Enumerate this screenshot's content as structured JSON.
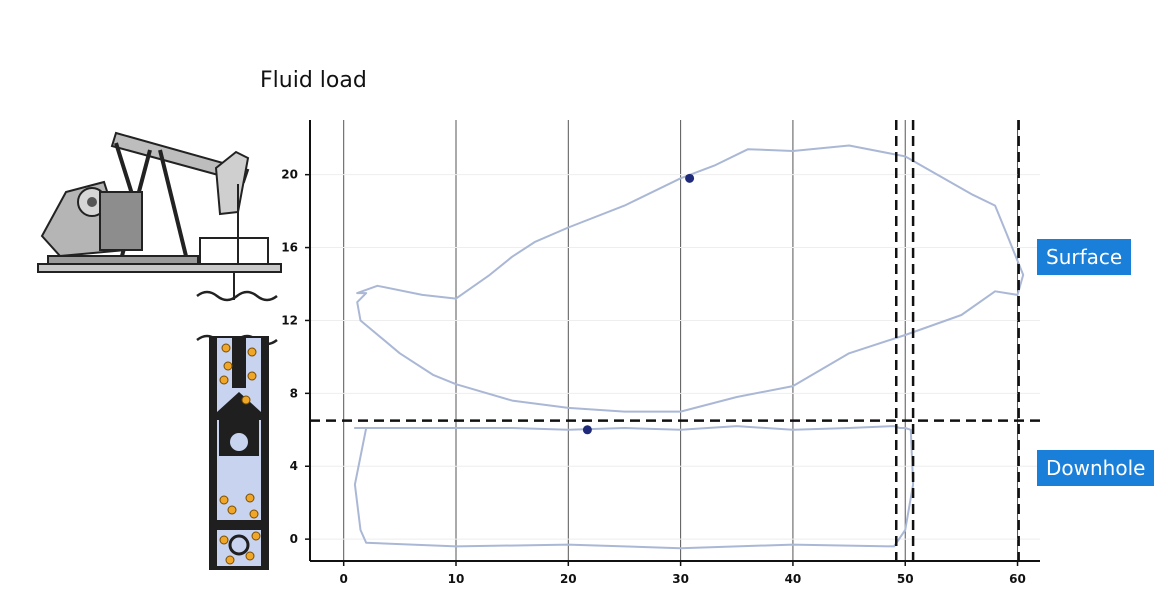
{
  "chart_data": {
    "type": "line",
    "title": "Fluid load",
    "xlabel": "",
    "ylabel": "",
    "xlim": [
      -3,
      62
    ],
    "ylim": [
      -1.2,
      23
    ],
    "xticks": [
      0,
      10,
      20,
      30,
      40,
      50,
      60
    ],
    "yticks": [
      0,
      4,
      8,
      12,
      16,
      20
    ],
    "grid": "vertical",
    "series": [
      {
        "name": "Surface",
        "color": "#aab8d6",
        "x": [
          2,
          1.2,
          1.5,
          5,
          8,
          10,
          15,
          20,
          25,
          30,
          35,
          40,
          45,
          50,
          55,
          58,
          60,
          60.5,
          59,
          58,
          56,
          50,
          45,
          40,
          36,
          33,
          30,
          25,
          20,
          17,
          15,
          13,
          10,
          7,
          3,
          1.2
        ],
        "y": [
          13.5,
          13,
          12,
          10.2,
          9,
          8.5,
          7.6,
          7.2,
          7.0,
          7.0,
          7.8,
          8.4,
          10.2,
          11.2,
          12.3,
          13.6,
          13.4,
          14.5,
          16.8,
          18.3,
          18.9,
          21,
          21.6,
          21.3,
          21.4,
          20.5,
          19.8,
          18.3,
          17.1,
          16.3,
          15.5,
          14.5,
          13.2,
          13.4,
          13.9,
          13.5
        ]
      },
      {
        "name": "Downhole",
        "color": "#aab8d6",
        "x": [
          2,
          1,
          1.5,
          2,
          10,
          20,
          30,
          40,
          49,
          50,
          50.7,
          50.5,
          50,
          49.5,
          49,
          45,
          40,
          35,
          30,
          25,
          20,
          15,
          10,
          5,
          1
        ],
        "y": [
          6.1,
          3,
          0.5,
          -0.2,
          -0.4,
          -0.3,
          -0.5,
          -0.3,
          -0.4,
          0.5,
          3,
          6.0,
          6.1,
          6.1,
          6.2,
          6.1,
          6.0,
          6.2,
          6.0,
          6.1,
          6.0,
          6.1,
          6.1,
          6.1,
          6.1
        ]
      }
    ],
    "markers": [
      {
        "x": 30.8,
        "y": 19.8,
        "color": "#1f2a7a"
      },
      {
        "x": 21.7,
        "y": 6.0,
        "color": "#1f2a7a"
      }
    ],
    "reference_lines": {
      "horizontal_dashed": [
        6.5
      ],
      "vertical_dashed": [
        49.2,
        50.7,
        60.1
      ]
    },
    "annotations": [
      "Surface",
      "Downhole"
    ]
  }
}
